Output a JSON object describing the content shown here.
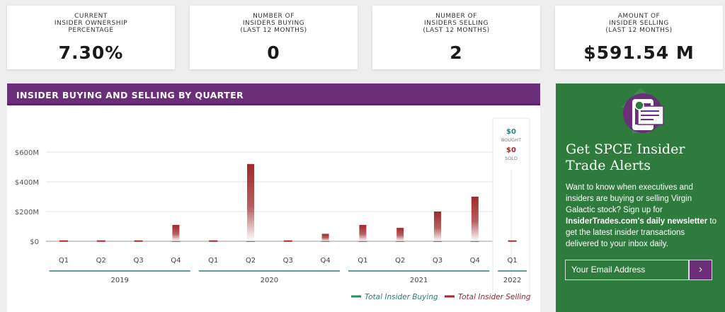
{
  "stats": [
    {
      "label": "CURRENT\nINSIDER OWNERSHIP\nPERCENTAGE",
      "value": "7.30%"
    },
    {
      "label": "NUMBER OF\nINSIDERS BUYING\n(LAST 12 MONTHS)",
      "value": "0"
    },
    {
      "label": "NUMBER OF\nINSIDERS SELLING\n(LAST 12 MONTHS)",
      "value": "2"
    },
    {
      "label": "AMOUNT OF\nINSIDER SELLING\n(LAST 12 MONTHS)",
      "value": "$591.54 M"
    }
  ],
  "chart_title": "INSIDER BUYING AND SELLING BY QUARTER",
  "tooltip": {
    "bought_value": "0",
    "bought_label": "BOUGHT",
    "sold_value": "0",
    "sold_label": "SOLD",
    "currency": "$"
  },
  "legend": {
    "buying": "Total Insider Buying",
    "selling": "Total Insider Selling"
  },
  "colors": {
    "buying": "#2e8b57",
    "selling": "#9e2a2b",
    "header": "#6b2f79",
    "promo": "#2f7a3d",
    "axis": "#2d7b7b"
  },
  "promo": {
    "title": "Get SPCE Insider Trade Alerts",
    "body_1": "Want to know when executives and insiders are buying or selling Virgin Galactic stock? Sign up for ",
    "body_bold": "InsiderTrades.com's daily newsletter",
    "body_2": " to get the latest insider transactions delivered to your inbox daily.",
    "email_placeholder": "Your Email Address",
    "submit_icon": "chevron-right-icon"
  },
  "chart_data": {
    "type": "bar",
    "categories": [
      "Q1",
      "Q2",
      "Q3",
      "Q4",
      "Q1",
      "Q2",
      "Q3",
      "Q4",
      "Q1",
      "Q2",
      "Q3",
      "Q4",
      "Q1"
    ],
    "years": [
      {
        "label": "2019",
        "quarters": 4
      },
      {
        "label": "2020",
        "quarters": 4
      },
      {
        "label": "2021",
        "quarters": 4
      },
      {
        "label": "2022",
        "quarters": 1
      }
    ],
    "series": [
      {
        "name": "Total Insider Buying",
        "values": [
          0,
          0,
          0,
          0,
          0,
          0,
          0,
          0,
          0,
          0,
          0,
          0,
          0
        ]
      },
      {
        "name": "Total Insider Selling",
        "values": [
          0,
          0,
          0,
          110,
          0,
          520,
          0,
          50,
          110,
          90,
          200,
          300,
          0
        ]
      }
    ],
    "y_ticks": [
      "$0",
      "$200M",
      "$400M",
      "$600M"
    ],
    "y_tick_values": [
      0,
      200,
      400,
      600
    ],
    "ylim": [
      0,
      650
    ],
    "units": "$M",
    "grid": true,
    "legend_position": "bottom-right"
  }
}
